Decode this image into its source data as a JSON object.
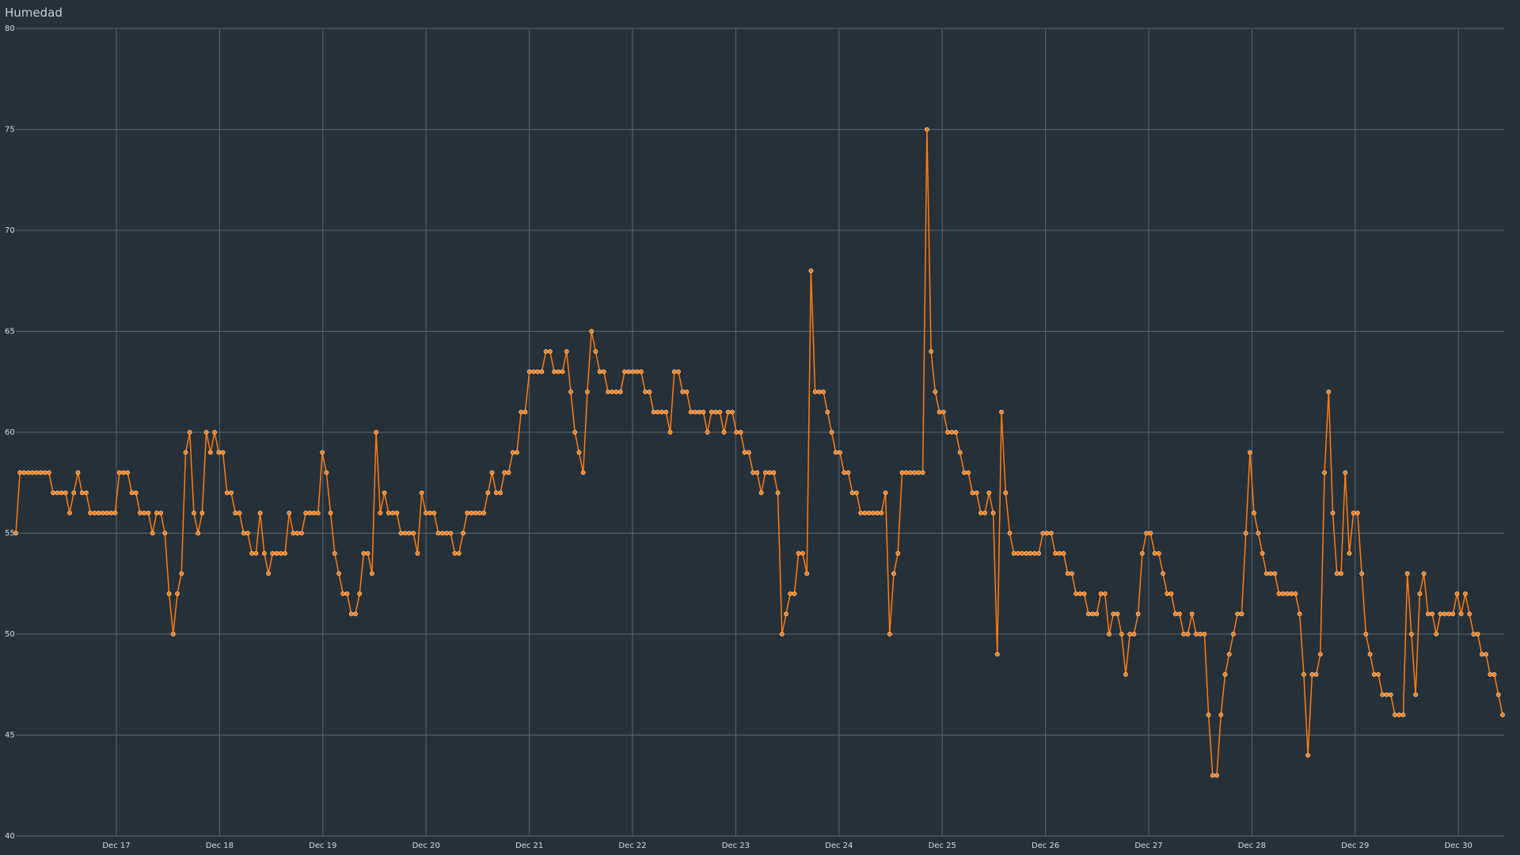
{
  "title": "Humedad",
  "colors": {
    "background": "#263038",
    "line": "#ff7c12",
    "grid": "#5b6770",
    "text": "#d8dde1"
  },
  "chart_data": {
    "type": "line",
    "title": "Humedad",
    "xlabel": "",
    "ylabel": "",
    "ylim": [
      40,
      80
    ],
    "yticks": [
      40,
      45,
      50,
      55,
      60,
      65,
      70,
      75,
      80
    ],
    "xticks": [
      "Dec 17",
      "Dec 18",
      "Dec 19",
      "Dec 20",
      "Dec 21",
      "Dec 22",
      "Dec 23",
      "Dec 24",
      "Dec 25",
      "Dec 26",
      "Dec 27",
      "Dec 28",
      "Dec 29",
      "Dec 30"
    ],
    "x_start": "Dec 16 ~ 00:00",
    "x_step_hours": 1,
    "grid": true,
    "series": [
      {
        "values": [
          55,
          58,
          58,
          58,
          58,
          58,
          58,
          58,
          58,
          57,
          57,
          57,
          57,
          56,
          57,
          58,
          57,
          57,
          56,
          56,
          56,
          56,
          56,
          56,
          56,
          58,
          58,
          58,
          57,
          57,
          56,
          56,
          56,
          55,
          56,
          56,
          55,
          52,
          50,
          52,
          53,
          59,
          60,
          56,
          55,
          56,
          60,
          59,
          60,
          59,
          59,
          57,
          57,
          56,
          56,
          55,
          55,
          54,
          54,
          56,
          54,
          53,
          54,
          54,
          54,
          54,
          56,
          55,
          55,
          55,
          56,
          56,
          56,
          56,
          59,
          58,
          56,
          54,
          53,
          52,
          52,
          51,
          51,
          52,
          54,
          54,
          53,
          60,
          56,
          57,
          56,
          56,
          56,
          55,
          55,
          55,
          55,
          54,
          57,
          56,
          56,
          56,
          55,
          55,
          55,
          55,
          54,
          54,
          55,
          56,
          56,
          56,
          56,
          56,
          57,
          58,
          57,
          57,
          58,
          58,
          59,
          59,
          61,
          61,
          63,
          63,
          63,
          63,
          64,
          64,
          63,
          63,
          63,
          64,
          62,
          60,
          59,
          58,
          62,
          65,
          64,
          63,
          63,
          62,
          62,
          62,
          62,
          63,
          63,
          63,
          63,
          63,
          62,
          62,
          61,
          61,
          61,
          61,
          60,
          63,
          63,
          62,
          62,
          61,
          61,
          61,
          61,
          60,
          61,
          61,
          61,
          60,
          61,
          61,
          60,
          60,
          59,
          59,
          58,
          58,
          57,
          58,
          58,
          58,
          57,
          50,
          51,
          52,
          52,
          54,
          54,
          53,
          68,
          62,
          62,
          62,
          61,
          60,
          59,
          59,
          58,
          58,
          57,
          57,
          56,
          56,
          56,
          56,
          56,
          56,
          57,
          50,
          53,
          54,
          58,
          58,
          58,
          58,
          58,
          58,
          75,
          64,
          62,
          61,
          61,
          60,
          60,
          60,
          59,
          58,
          58,
          57,
          57,
          56,
          56,
          57,
          56,
          49,
          61,
          57,
          55,
          54,
          54,
          54,
          54,
          54,
          54,
          54,
          55,
          55,
          55,
          54,
          54,
          54,
          53,
          53,
          52,
          52,
          52,
          51,
          51,
          51,
          52,
          52,
          50,
          51,
          51,
          50,
          48,
          50,
          50,
          51,
          54,
          55,
          55,
          54,
          54,
          53,
          52,
          52,
          51,
          51,
          50,
          50,
          51,
          50,
          50,
          50,
          46,
          43,
          43,
          46,
          48,
          49,
          50,
          51,
          51,
          55,
          59,
          56,
          55,
          54,
          53,
          53,
          53,
          52,
          52,
          52,
          52,
          52,
          51,
          48,
          44,
          48,
          48,
          49,
          58,
          62,
          56,
          53,
          53,
          58,
          54,
          56,
          56,
          53,
          50,
          49,
          48,
          48,
          47,
          47,
          47,
          46,
          46,
          46,
          53,
          50,
          47,
          52,
          53,
          51,
          51,
          50,
          51,
          51,
          51,
          51,
          52,
          51,
          52,
          51,
          50,
          50,
          49,
          49,
          48,
          48,
          47,
          46
        ]
      }
    ]
  }
}
